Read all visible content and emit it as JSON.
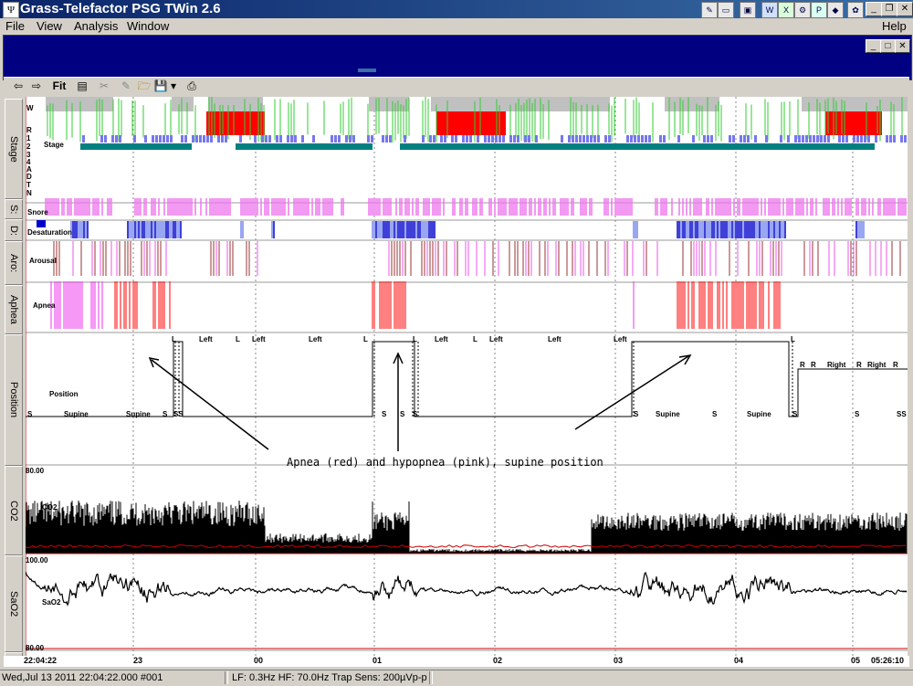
{
  "window": {
    "title": "Grass-Telefactor PSG TWin 2.6",
    "icon": "app-logo-icon"
  },
  "tray_icons": [
    "note-icon",
    "folder-icon",
    "folder-open-icon",
    "monitor-icon",
    "word-icon",
    "excel-icon",
    "network-icon",
    "publisher-icon",
    "cube-icon",
    "paint-icon"
  ],
  "menu": [
    "File",
    "View",
    "Analysis",
    "Window",
    "Help"
  ],
  "toolbar": {
    "fit_label": "Fit"
  },
  "channels": {
    "stage": "Stage",
    "snore_short": "S:",
    "desat_short": "D:",
    "arousal_short": "Aro:",
    "apnea": "Aphea",
    "position": "Position",
    "co2": "CO2",
    "sao2": "SaO2",
    "t": "T"
  },
  "track_labels": {
    "stage": "Stage",
    "snore": "Snore",
    "desaturation": "Desaturation",
    "arousal": "Arousal",
    "apnea": "Apnea",
    "position": "Position",
    "co2": "CO2",
    "sao2": "SaO2"
  },
  "stage_levels": [
    "W",
    "R",
    "1",
    "2",
    "3",
    "4",
    "A",
    "D",
    "T",
    "N"
  ],
  "position_labels": {
    "supine": "Supine",
    "left": "Left",
    "right": "Right",
    "s": "S",
    "l": "L",
    "r": "R",
    "ss": "SS"
  },
  "scales": {
    "co2_top": "80.00",
    "sao2_top": "100.00",
    "sao2_bottom": "80.00"
  },
  "time_axis": [
    "22:04:22",
    "23",
    "00",
    "01",
    "02",
    "03",
    "04",
    "05",
    "05:26:10"
  ],
  "annotation": "Apnea (red) and hypopnea (pink), supine position",
  "status": {
    "datetime": "Wed,Jul 13 2011  22:04:22.000 #001",
    "filters": "LF:  0.3Hz HF: 70.0Hz Trap Sens:  200µVp-p"
  },
  "colors": {
    "title_start": "#0a246a",
    "title_end": "#3a6ea5",
    "child_frame": "#000080",
    "stage_awake_fill": "#c0c0c0",
    "stage_wake_trace": "#33cc33",
    "stage_rem_block": "#ff0000",
    "stage_light": "#7777ee",
    "stage_deep": "#008080",
    "snore": "#ee77ee",
    "desaturation_dark": "#0000cc",
    "desaturation_light": "#7788ee",
    "arousal_dark": "#993333",
    "arousal_pink": "#ee55ee",
    "apnea_red": "#ff0000",
    "hypopnea_pink": "#ee33ee",
    "signal": "#000000",
    "baseline_red": "#cc0000"
  }
}
